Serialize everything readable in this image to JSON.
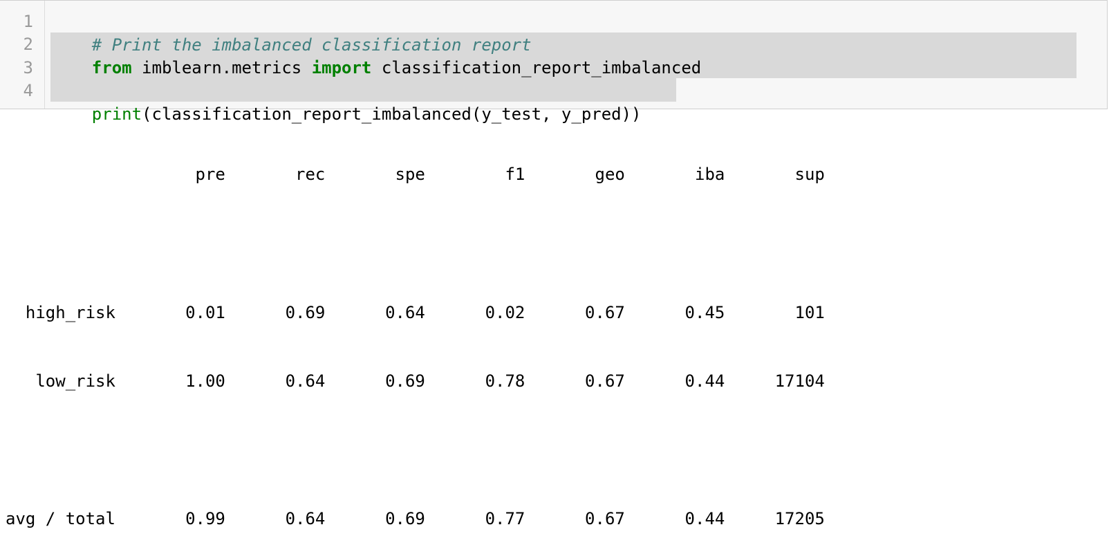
{
  "code": {
    "line_numbers": [
      "1",
      "2",
      "3",
      "4"
    ],
    "line1": {
      "comment": "# Print the imbalanced classification report"
    },
    "line2": {
      "kw1": "from",
      "mid": " imblearn.metrics ",
      "kw2": "import",
      "rest": " classification_report_imbalanced"
    },
    "line4": {
      "builtin": "print",
      "rest": "(classification_report_imbalanced(y_test, y_pred))"
    }
  },
  "output": {
    "header": "                   pre       rec       spe        f1       geo       iba       sup",
    "blank1": "",
    "row_high_risk": "  high_risk       0.01      0.69      0.64      0.02      0.67      0.45       101",
    "row_low_risk": "   low_risk       1.00      0.64      0.69      0.78      0.67      0.44     17104",
    "blank2": "",
    "row_avg_total": "avg / total       0.99      0.64      0.69      0.77      0.67      0.44     17205"
  }
}
